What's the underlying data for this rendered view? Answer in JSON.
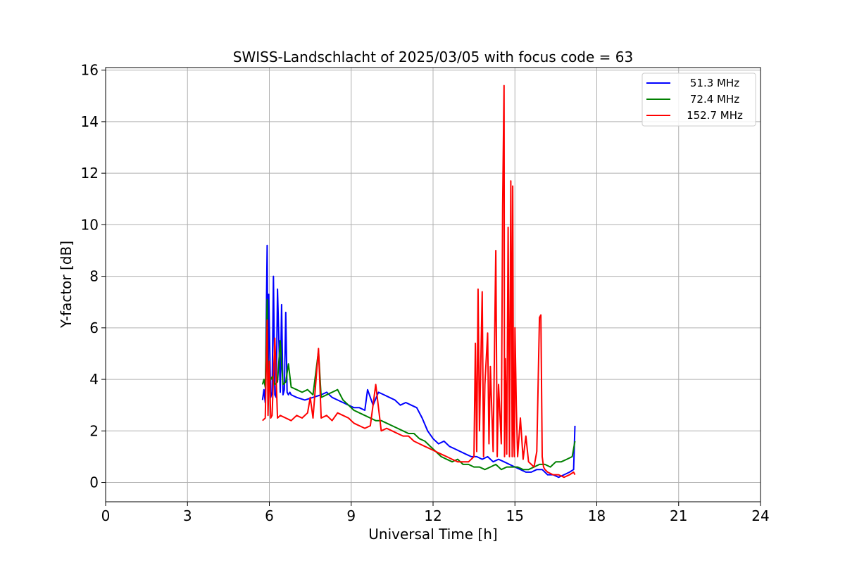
{
  "chart_data": {
    "type": "line",
    "title": "SWISS-Landschlacht of 2025/03/05 with focus code = 63",
    "xlabel": "Universal Time [h]",
    "ylabel": "Y-factor [dB]",
    "xlim": [
      0,
      24
    ],
    "ylim": [
      -0.75,
      16.1
    ],
    "xticks": [
      0,
      3,
      6,
      9,
      12,
      15,
      18,
      21,
      24
    ],
    "yticks": [
      0,
      2,
      4,
      6,
      8,
      10,
      12,
      14,
      16
    ],
    "grid": true,
    "legend_position": "top-right",
    "series": [
      {
        "name": "51.3 MHz",
        "color": "#0000ff",
        "x": [
          5.75,
          5.8,
          5.85,
          5.92,
          5.95,
          5.98,
          6.05,
          6.1,
          6.15,
          6.2,
          6.25,
          6.3,
          6.4,
          6.45,
          6.5,
          6.55,
          6.6,
          6.65,
          6.7,
          6.75,
          6.8,
          7.0,
          7.3,
          7.6,
          7.9,
          8.1,
          8.3,
          8.5,
          8.7,
          8.9,
          9.1,
          9.3,
          9.5,
          9.6,
          9.8,
          10.0,
          10.2,
          10.4,
          10.6,
          10.8,
          11.0,
          11.2,
          11.4,
          11.6,
          11.8,
          12.0,
          12.2,
          12.4,
          12.6,
          12.8,
          13.0,
          13.2,
          13.4,
          13.6,
          13.8,
          14.0,
          14.2,
          14.4,
          14.6,
          14.8,
          15.0,
          15.2,
          15.4,
          15.6,
          15.8,
          16.0,
          16.2,
          16.4,
          16.6,
          16.8,
          17.0,
          17.15,
          17.2
        ],
        "y": [
          3.2,
          3.6,
          3.1,
          9.2,
          3.5,
          7.3,
          3.3,
          3.5,
          8.0,
          3.4,
          3.3,
          7.5,
          3.5,
          6.9,
          3.4,
          3.6,
          6.6,
          3.5,
          3.4,
          3.5,
          3.4,
          3.3,
          3.2,
          3.3,
          3.4,
          3.5,
          3.3,
          3.2,
          3.1,
          3.0,
          2.9,
          2.9,
          2.8,
          3.6,
          3.0,
          3.5,
          3.4,
          3.3,
          3.2,
          3.0,
          3.1,
          3.0,
          2.9,
          2.5,
          2.0,
          1.7,
          1.5,
          1.6,
          1.4,
          1.3,
          1.2,
          1.1,
          1.0,
          1.0,
          0.9,
          1.0,
          0.8,
          0.9,
          0.8,
          0.7,
          0.6,
          0.5,
          0.4,
          0.4,
          0.5,
          0.5,
          0.3,
          0.3,
          0.2,
          0.3,
          0.4,
          0.5,
          2.2
        ]
      },
      {
        "name": "72.4 MHz",
        "color": "#008000",
        "x": [
          5.75,
          5.8,
          5.85,
          5.92,
          5.95,
          6.0,
          6.1,
          6.2,
          6.3,
          6.4,
          6.5,
          6.6,
          6.7,
          6.8,
          7.0,
          7.2,
          7.4,
          7.6,
          7.8,
          7.9,
          8.1,
          8.3,
          8.5,
          8.7,
          8.9,
          9.1,
          9.3,
          9.5,
          9.7,
          9.9,
          10.1,
          10.3,
          10.5,
          10.7,
          10.9,
          11.1,
          11.3,
          11.5,
          11.7,
          11.9,
          12.1,
          12.3,
          12.5,
          12.7,
          12.9,
          13.1,
          13.3,
          13.5,
          13.7,
          13.9,
          14.1,
          14.3,
          14.5,
          14.7,
          14.9,
          15.1,
          15.3,
          15.5,
          15.7,
          15.9,
          16.1,
          16.3,
          16.5,
          16.7,
          16.9,
          17.1,
          17.2
        ],
        "y": [
          3.8,
          4.0,
          3.7,
          7.1,
          3.9,
          3.9,
          4.1,
          3.8,
          3.9,
          5.5,
          3.8,
          3.9,
          4.6,
          3.7,
          3.6,
          3.5,
          3.6,
          3.4,
          5.1,
          3.3,
          3.4,
          3.5,
          3.6,
          3.2,
          3.0,
          2.8,
          2.7,
          2.6,
          2.5,
          2.4,
          2.4,
          2.3,
          2.2,
          2.1,
          2.0,
          1.9,
          1.9,
          1.7,
          1.6,
          1.4,
          1.2,
          1.0,
          0.9,
          0.8,
          0.9,
          0.7,
          0.7,
          0.6,
          0.6,
          0.5,
          0.6,
          0.7,
          0.5,
          0.6,
          0.6,
          0.6,
          0.5,
          0.5,
          0.6,
          0.7,
          0.7,
          0.6,
          0.8,
          0.8,
          0.9,
          1.0,
          1.6
        ]
      },
      {
        "name": "152.7 MHz",
        "color": "#ff0000",
        "x": [
          5.75,
          5.85,
          5.92,
          5.95,
          6.0,
          6.05,
          6.1,
          6.2,
          6.3,
          6.4,
          6.6,
          6.8,
          7.0,
          7.2,
          7.4,
          7.5,
          7.6,
          7.8,
          7.9,
          8.1,
          8.3,
          8.5,
          8.7,
          8.9,
          9.1,
          9.3,
          9.5,
          9.7,
          9.9,
          10.1,
          10.3,
          10.5,
          10.7,
          10.9,
          11.1,
          11.3,
          11.5,
          11.7,
          11.9,
          12.1,
          12.3,
          12.5,
          12.7,
          12.9,
          13.1,
          13.3,
          13.5,
          13.55,
          13.6,
          13.65,
          13.7,
          13.8,
          13.85,
          13.9,
          14.0,
          14.05,
          14.1,
          14.2,
          14.3,
          14.35,
          14.4,
          14.5,
          14.55,
          14.6,
          14.62,
          14.65,
          14.7,
          14.75,
          14.8,
          14.85,
          14.9,
          14.92,
          14.95,
          14.98,
          15.0,
          15.05,
          15.1,
          15.2,
          15.3,
          15.4,
          15.5,
          15.6,
          15.7,
          15.8,
          15.9,
          15.95,
          16.0,
          16.05,
          16.1,
          16.2,
          16.4,
          16.6,
          16.8,
          17.0,
          17.15,
          17.2
        ],
        "y": [
          2.4,
          2.5,
          6.3,
          2.6,
          4.7,
          2.5,
          2.6,
          5.6,
          2.5,
          2.6,
          2.5,
          2.4,
          2.6,
          2.5,
          2.7,
          3.3,
          2.5,
          5.2,
          2.5,
          2.6,
          2.4,
          2.7,
          2.6,
          2.5,
          2.3,
          2.2,
          2.1,
          2.2,
          3.8,
          2.0,
          2.1,
          2.0,
          1.9,
          1.8,
          1.8,
          1.6,
          1.5,
          1.4,
          1.3,
          1.2,
          1.1,
          1.0,
          0.9,
          0.8,
          0.8,
          0.8,
          1.0,
          5.4,
          1.2,
          7.5,
          2.0,
          7.4,
          1.0,
          3.8,
          5.8,
          1.5,
          4.5,
          1.2,
          9.0,
          1.0,
          3.8,
          1.5,
          10.7,
          15.4,
          1.0,
          4.8,
          1.1,
          9.9,
          1.0,
          11.7,
          1.0,
          11.5,
          2.0,
          1.0,
          6.0,
          3.0,
          1.0,
          2.5,
          0.9,
          1.8,
          0.8,
          0.7,
          0.6,
          1.2,
          6.4,
          6.5,
          1.0,
          0.6,
          0.5,
          0.4,
          0.3,
          0.3,
          0.2,
          0.3,
          0.4,
          0.3
        ]
      }
    ]
  }
}
